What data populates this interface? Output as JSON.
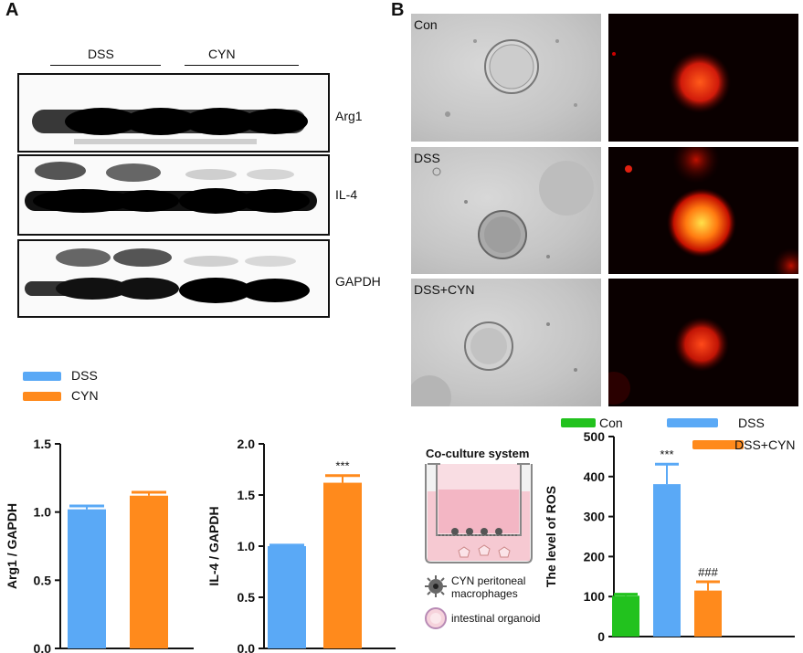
{
  "panels": {
    "a": "A",
    "b": "B"
  },
  "blot": {
    "groups": [
      "DSS",
      "CYN"
    ],
    "rows": [
      "Arg1",
      "IL-4",
      "GAPDH"
    ]
  },
  "micro": {
    "rows": [
      "Con",
      "DSS",
      "DSS+CYN"
    ]
  },
  "legend_a": [
    {
      "name": "DSS",
      "color": "#5aa9f6"
    },
    {
      "name": "CYN",
      "color": "#ff8a1c"
    }
  ],
  "coculture": {
    "title": "Co-culture system",
    "macrophage_label_1": "CYN peritoneal",
    "macrophage_label_2": "macrophages",
    "organoid_label": "intestinal organoid"
  },
  "colors": {
    "dss": "#5aa9f6",
    "cyn": "#ff8a1c",
    "con": "#22c21e"
  },
  "chart_data": [
    {
      "type": "bar",
      "categories": [
        "DSS",
        "CYN"
      ],
      "values": [
        1.02,
        1.12
      ],
      "errors": [
        0.025,
        0.025
      ],
      "ylabel": "Arg1 / GAPDH",
      "ylim": [
        0,
        1.5
      ],
      "yticks": [
        "0.0",
        "0.5",
        "1.0",
        "1.5"
      ],
      "annotations": [
        "",
        ""
      ]
    },
    {
      "type": "bar",
      "categories": [
        "DSS",
        "CYN"
      ],
      "values": [
        1.0,
        1.62
      ],
      "errors": [
        0.01,
        0.07
      ],
      "ylabel": "IL-4 / GAPDH",
      "ylim": [
        0.5,
        2.0
      ],
      "yticks": [
        "0.0",
        "0.5",
        "1.0",
        "1.5",
        "2.0"
      ],
      "annotations": [
        "",
        "***"
      ]
    },
    {
      "type": "bar",
      "categories": [
        "Con",
        "DSS",
        "DSS+CYN"
      ],
      "values": [
        102,
        381,
        115
      ],
      "errors": [
        4,
        50,
        22
      ],
      "ylabel": "The level of ROS",
      "ylim": [
        0,
        500
      ],
      "yticks": [
        "0",
        "100",
        "200",
        "300",
        "400",
        "500"
      ],
      "annotations": [
        "",
        "***",
        "###"
      ],
      "legend": [
        "Con",
        "DSS",
        "DSS+CYN"
      ]
    }
  ]
}
